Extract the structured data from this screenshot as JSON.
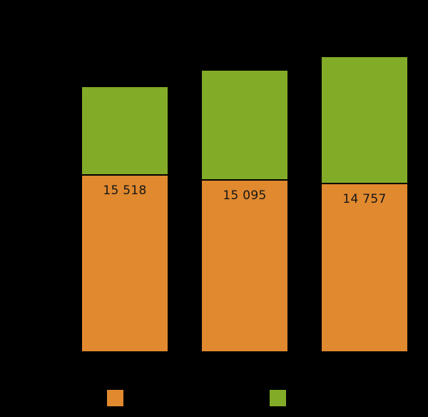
{
  "chart_data": {
    "type": "bar",
    "stacked": true,
    "orientation": "vertical",
    "background_color": "#000000",
    "title": "",
    "xlabel": "",
    "ylabel": "",
    "grid": false,
    "categories": [
      "",
      "",
      ""
    ],
    "series": [
      {
        "name": "orange-segment",
        "color": "#E0892F",
        "values": [
          15518,
          15095,
          14757
        ],
        "value_labels": [
          "15 518",
          "15 095",
          "14 757"
        ],
        "labels_visible": true
      },
      {
        "name": "green-segment",
        "color": "#82AB28",
        "values": [
          7700,
          9600,
          11100
        ],
        "value_labels": [
          "",
          "",
          ""
        ],
        "labels_visible": false
      }
    ],
    "value_label_color": "#161616",
    "segment_divider_color": "#000000",
    "ylim": [
      0,
      26500
    ],
    "legend_position": "bottom"
  },
  "legend": {
    "items": [
      {
        "swatch_color": "#E0892F",
        "label": ""
      },
      {
        "swatch_color": "#82AB28",
        "label": ""
      }
    ]
  }
}
